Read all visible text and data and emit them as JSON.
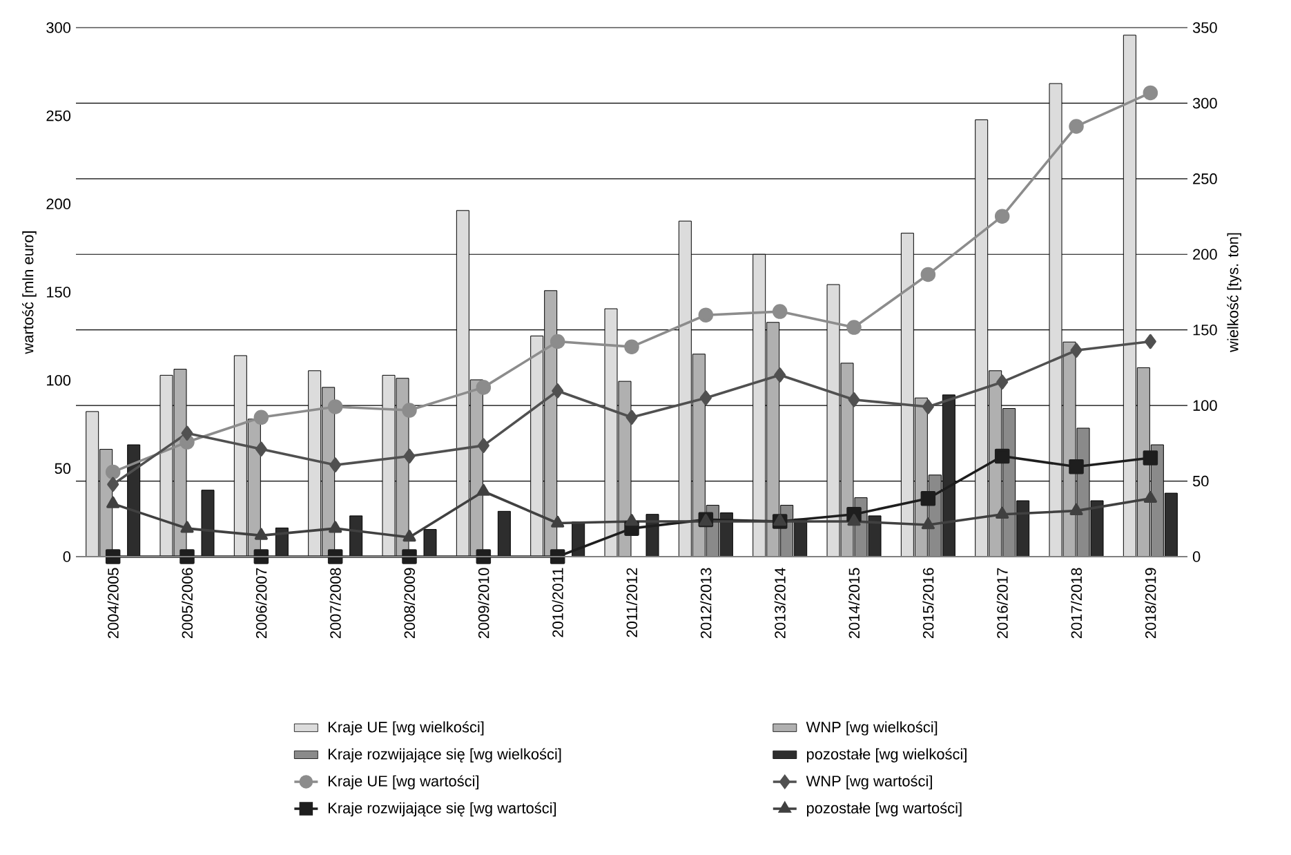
{
  "chart_data": {
    "type": "bar",
    "xlabel": null,
    "ylabel": "wartość [mln euro]",
    "y2label": "wielkość [tys. ton]",
    "categories": [
      "2004/2005",
      "2005/2006",
      "2006/2007",
      "2007/2008",
      "2008/2009",
      "2009/2010",
      "2010/2011",
      "2011/2012",
      "2012/2013",
      "2013/2014",
      "2014/2015",
      "2015/2016",
      "2016/2017",
      "2017/2018",
      "2018/2019"
    ],
    "ylim": [
      0,
      300
    ],
    "yticks": [
      0,
      50,
      100,
      150,
      200,
      250,
      300
    ],
    "y2lim": [
      0,
      350
    ],
    "y2ticks": [
      0,
      50,
      100,
      150,
      200,
      250,
      300,
      350
    ],
    "grid": "y",
    "legend": "bottom",
    "series": [
      {
        "name": "Kraje UE [wg wielkości]",
        "axis": "y2",
        "color": "#dcdcdc",
        "values": [
          96,
          120,
          133,
          123,
          120,
          229,
          146,
          164,
          222,
          200,
          180,
          214,
          289,
          313,
          345
        ]
      },
      {
        "name": "WNP [wg wielkości]",
        "axis": "y2",
        "color": "#b0b0b0",
        "values": [
          71,
          124,
          91,
          112,
          118,
          117,
          176,
          116,
          134,
          155,
          128,
          105,
          123,
          142,
          125
        ]
      },
      {
        "name": "Kraje rozwijające się  [wg wielkości]",
        "axis": "y2",
        "color": "#8a8a8a",
        "values": [
          null,
          null,
          null,
          null,
          null,
          null,
          null,
          null,
          34,
          34,
          39,
          54,
          98,
          85,
          74
        ]
      },
      {
        "name": "pozostałe [wg wielkości]",
        "axis": "y2",
        "color": "#2d2d2d",
        "values": [
          74,
          44,
          19,
          27,
          18,
          30,
          23,
          28,
          29,
          25,
          27,
          107,
          37,
          37,
          42
        ]
      },
      {
        "name": "Kraje UE [wg wartości]",
        "type": "line",
        "axis": "y",
        "marker": "circle",
        "color": "#8c8c8c",
        "values": [
          48,
          65,
          79,
          85,
          83,
          96,
          122,
          119,
          137,
          139,
          130,
          160,
          193,
          244,
          263
        ]
      },
      {
        "name": "WNP [wg wartości]",
        "type": "line",
        "axis": "y",
        "marker": "diamond",
        "color": "#505050",
        "values": [
          41,
          70,
          61,
          52,
          57,
          63,
          94,
          79,
          90,
          103,
          89,
          85,
          99,
          117,
          122
        ]
      },
      {
        "name": "Kraje rozwijające się  [wg wartości]",
        "type": "line",
        "axis": "y",
        "marker": "square",
        "color": "#1e1e1e",
        "values": [
          0,
          0,
          0,
          0,
          0,
          0,
          0,
          16,
          21,
          20,
          24,
          33,
          57,
          51,
          56
        ]
      },
      {
        "name": "pozostałe [wg wartości]",
        "type": "line",
        "axis": "y",
        "marker": "triangle",
        "color": "#404040",
        "values": [
          30,
          16,
          12,
          16,
          11,
          37,
          19,
          20,
          20,
          20,
          20,
          18,
          24,
          26,
          33
        ]
      }
    ]
  }
}
